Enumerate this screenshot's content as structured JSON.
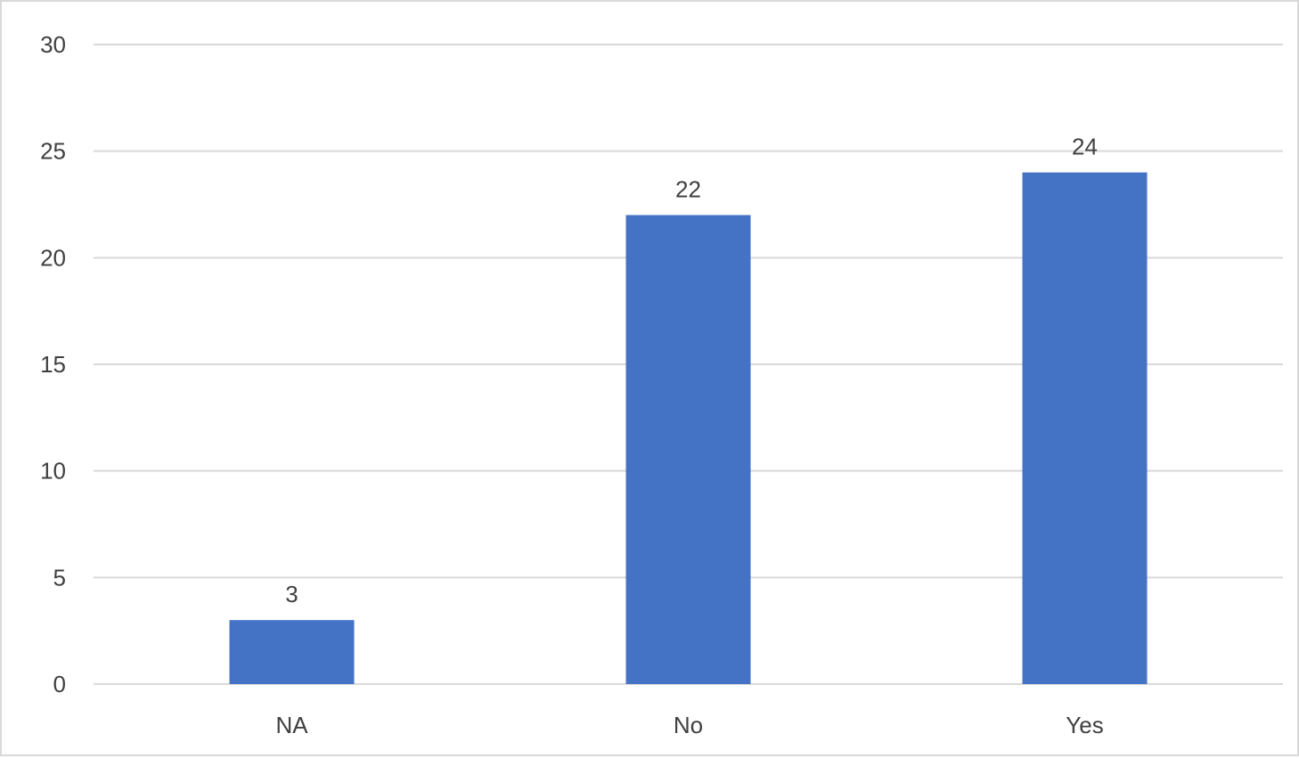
{
  "chart_data": {
    "type": "bar",
    "categories": [
      "NA",
      "No",
      "Yes"
    ],
    "values": [
      3,
      22,
      24
    ],
    "data_labels": [
      "3",
      "22",
      "24"
    ],
    "title": "",
    "xlabel": "",
    "ylabel": "",
    "ylim": [
      0,
      30
    ],
    "yticks": [
      "0",
      "5",
      "10",
      "15",
      "20",
      "25",
      "30"
    ],
    "grid": true,
    "legend": "none",
    "bar_color": "#4472c4"
  }
}
